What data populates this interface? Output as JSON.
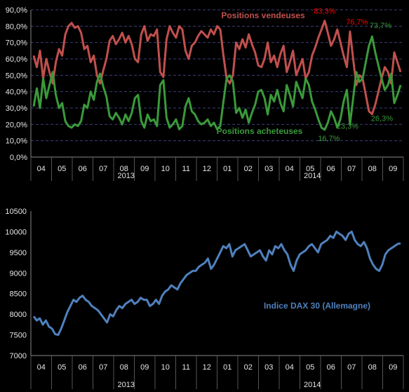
{
  "chart_data": [
    {
      "type": "line",
      "title": "",
      "ylabel": "",
      "xlabel": "",
      "ylim": [
        0,
        90
      ],
      "y_ticks": [
        "0,0%",
        "10,0%",
        "20,0%",
        "30,0%",
        "40,0%",
        "50,0%",
        "60,0%",
        "70,0%",
        "80,0%",
        "90,0%"
      ],
      "grid": true,
      "x_month_labels": [
        "04",
        "05",
        "06",
        "07",
        "08",
        "09",
        "10",
        "11",
        "12",
        "01",
        "02",
        "03",
        "04",
        "05",
        "06",
        "07",
        "08",
        "09"
      ],
      "year_labels": [
        "2013",
        "2014"
      ],
      "series": [
        {
          "name": "Positions vendeuses",
          "color": "#c0504d",
          "values": [
            62,
            55,
            65,
            48,
            60,
            52,
            45,
            58,
            66,
            62,
            75,
            80,
            82,
            79,
            80,
            76,
            66,
            68,
            58,
            62,
            50,
            45,
            53,
            60,
            71,
            74,
            69,
            72,
            76,
            70,
            74,
            69,
            60,
            58,
            75,
            80,
            71,
            75,
            74,
            78,
            52,
            49,
            72,
            80,
            76,
            73,
            80,
            78,
            65,
            60,
            68,
            70,
            74,
            77,
            75,
            73,
            78,
            75,
            80,
            78,
            62,
            48,
            45,
            50,
            70,
            66,
            72,
            67,
            75,
            69,
            64,
            56,
            55,
            60,
            70,
            58,
            62,
            55,
            63,
            68,
            52,
            58,
            65,
            50,
            55,
            60,
            48,
            52,
            62,
            67,
            73,
            78,
            83.3,
            76,
            68,
            72,
            78,
            70,
            62,
            55,
            76.7,
            60,
            44,
            50,
            48,
            38,
            28,
            26.3,
            32,
            40,
            48,
            55,
            52,
            45,
            64,
            58,
            52
          ]
        },
        {
          "name": "Positions acheteuses",
          "color": "#3a9a3a",
          "values": [
            31,
            42,
            30,
            48,
            36,
            44,
            52,
            38,
            30,
            33,
            22,
            19,
            18,
            20,
            19,
            22,
            32,
            30,
            40,
            35,
            46,
            51,
            43,
            37,
            25,
            23,
            27,
            24,
            20,
            26,
            22,
            27,
            36,
            38,
            22,
            18,
            26,
            22,
            23,
            19,
            44,
            47,
            24,
            18,
            20,
            23,
            17,
            19,
            31,
            36,
            28,
            26,
            22,
            20,
            21,
            23,
            19,
            21,
            17,
            19,
            34,
            48,
            50,
            46,
            27,
            30,
            24,
            29,
            21,
            27,
            32,
            40,
            41,
            36,
            26,
            38,
            34,
            41,
            33,
            28,
            44,
            38,
            31,
            46,
            41,
            36,
            48,
            44,
            34,
            29,
            23,
            18,
            16.7,
            21,
            28,
            24,
            18,
            23.3,
            34,
            41,
            20,
            36,
            52,
            46,
            48,
            58,
            68,
            73.7,
            64,
            56,
            48,
            41,
            44,
            51,
            33,
            38,
            44
          ]
        }
      ],
      "annotations": [
        {
          "text": "Positions vendeuses",
          "color": "#c0504d"
        },
        {
          "text": "Positions acheteuses",
          "color": "#3a9a3a"
        },
        {
          "text": "83,3%",
          "color": "#ff0000",
          "series": 0,
          "index": 92
        },
        {
          "text": "76,7%",
          "color": "#ff0000",
          "series": 0,
          "index": 100
        },
        {
          "text": "73,7%",
          "color": "#3a9a3a",
          "series": 1,
          "index": 107
        },
        {
          "text": "16,7%",
          "color": "#3a9a3a",
          "series": 1,
          "index": 92
        },
        {
          "text": "23,3%",
          "color": "#3a9a3a",
          "series": 1,
          "index": 97
        },
        {
          "text": "26,3%",
          "color": "#3a9a3a",
          "series": 0,
          "index": 107
        }
      ]
    },
    {
      "type": "line",
      "title": "",
      "ylabel": "",
      "xlabel": "",
      "ylim": [
        7000,
        10500
      ],
      "y_ticks": [
        "7000",
        "7500",
        "8000",
        "8500",
        "9000",
        "9500",
        "10000",
        "10500"
      ],
      "grid": false,
      "x_month_labels": [
        "04",
        "05",
        "06",
        "07",
        "08",
        "09",
        "10",
        "11",
        "12",
        "01",
        "02",
        "03",
        "04",
        "05",
        "06",
        "07",
        "08",
        "09"
      ],
      "year_labels": [
        "2013",
        "2014"
      ],
      "series": [
        {
          "name": "Indice DAX 30 (Allemagne)",
          "color": "#4f81bd",
          "values": [
            7950,
            7850,
            7900,
            7750,
            7850,
            7700,
            7650,
            7520,
            7500,
            7650,
            7850,
            8050,
            8200,
            8350,
            8300,
            8400,
            8450,
            8350,
            8300,
            8200,
            8150,
            8100,
            8000,
            7900,
            7800,
            8000,
            7950,
            8100,
            8200,
            8150,
            8250,
            8300,
            8350,
            8250,
            8300,
            8400,
            8350,
            8350,
            8200,
            8250,
            8350,
            8250,
            8450,
            8550,
            8600,
            8700,
            8650,
            8600,
            8750,
            8850,
            8950,
            9000,
            9050,
            9050,
            9150,
            9200,
            9250,
            9350,
            9100,
            9200,
            9350,
            9500,
            9650,
            9600,
            9700,
            9400,
            9550,
            9600,
            9650,
            9700,
            9550,
            9400,
            9450,
            9500,
            9550,
            9400,
            9300,
            9550,
            9450,
            9650,
            9600,
            9700,
            9550,
            9450,
            9200,
            9050,
            9300,
            9450,
            9500,
            9550,
            9650,
            9700,
            9600,
            9500,
            9700,
            9750,
            9800,
            9900,
            9850,
            10000,
            9950,
            9900,
            9800,
            9950,
            10000,
            9800,
            9700,
            9650,
            9750,
            9600,
            9350,
            9200,
            9100,
            9050,
            9200,
            9450,
            9550,
            9600,
            9650,
            9700,
            9720
          ]
        }
      ],
      "annotations": [
        {
          "text": "Indice DAX 30 (Allemagne)",
          "color": "#4f81bd"
        }
      ]
    }
  ]
}
